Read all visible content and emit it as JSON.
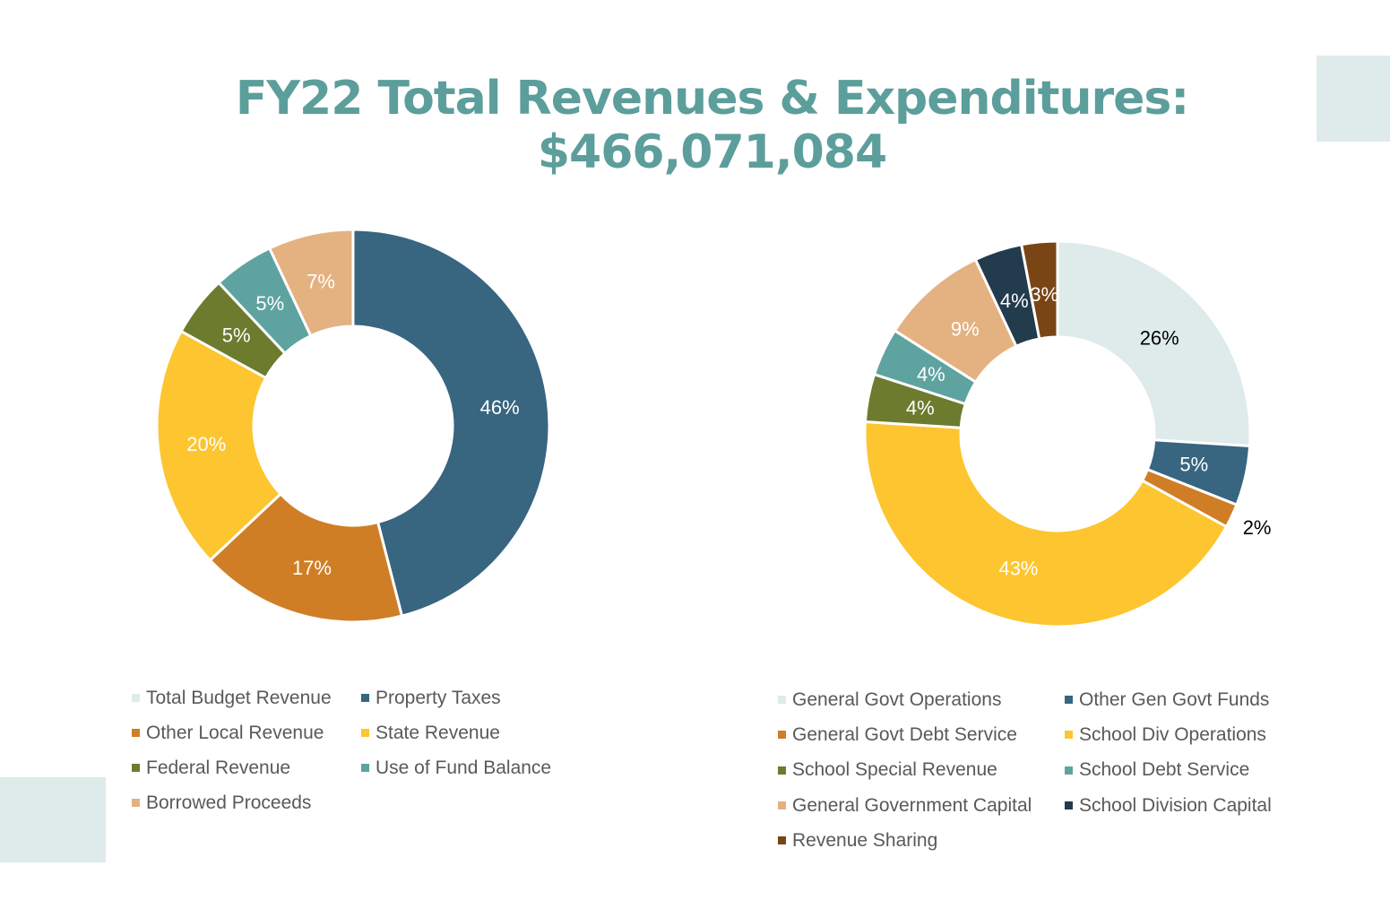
{
  "title": {
    "line1": "FY22 Total Revenues & Expenditures:",
    "line2": "$466,071,084"
  },
  "chart_data": [
    {
      "type": "donut",
      "legend_position": "bottom",
      "series": [
        {
          "name": "Total Budget Revenue",
          "value": 0,
          "label": "",
          "color": "#deebea",
          "label_color": "#ffffff"
        },
        {
          "name": "Property Taxes",
          "value": 46,
          "label": "46%",
          "color": "#386580",
          "label_color": "#ffffff"
        },
        {
          "name": "Other Local Revenue",
          "value": 17,
          "label": "17%",
          "color": "#d07e26",
          "label_color": "#ffffff"
        },
        {
          "name": "State Revenue",
          "value": 20,
          "label": "20%",
          "color": "#fdc52f",
          "label_color": "#ffffff"
        },
        {
          "name": "Federal Revenue",
          "value": 5,
          "label": "5%",
          "color": "#6c7b2e",
          "label_color": "#ffffff"
        },
        {
          "name": "Use of Fund Balance",
          "value": 5,
          "label": "5%",
          "color": "#5ea3a0",
          "label_color": "#ffffff"
        },
        {
          "name": "Borrowed Proceeds",
          "value": 7,
          "label": "7%",
          "color": "#e4b181",
          "label_color": "#ffffff"
        }
      ]
    },
    {
      "type": "donut",
      "legend_position": "bottom",
      "series": [
        {
          "name": "General Govt Operations",
          "value": 26,
          "label": "26%",
          "color": "#deebea",
          "label_color": "#000000"
        },
        {
          "name": "Other Gen Govt Funds",
          "value": 5,
          "label": "5%",
          "color": "#386580",
          "label_color": "#ffffff"
        },
        {
          "name": "General Govt Debt Service",
          "value": 2,
          "label": "2%",
          "color": "#d07e26",
          "label_color": "#000000"
        },
        {
          "name": "School Div Operations",
          "value": 43,
          "label": "43%",
          "color": "#fdc52f",
          "label_color": "#ffffff"
        },
        {
          "name": "School Special Revenue",
          "value": 4,
          "label": "4%",
          "color": "#6c7b2e",
          "label_color": "#ffffff"
        },
        {
          "name": "School Debt Service",
          "value": 4,
          "label": "4%",
          "color": "#5ea3a0",
          "label_color": "#ffffff"
        },
        {
          "name": "General Government Capital",
          "value": 9,
          "label": "9%",
          "color": "#e4b181",
          "label_color": "#ffffff"
        },
        {
          "name": "School Division Capital",
          "value": 4,
          "label": "4%",
          "color": "#223b4d",
          "label_color": "#ffffff"
        },
        {
          "name": "Revenue Sharing",
          "value": 3,
          "label": "3%",
          "color": "#7a4515",
          "label_color": "#ffffff"
        }
      ]
    }
  ]
}
